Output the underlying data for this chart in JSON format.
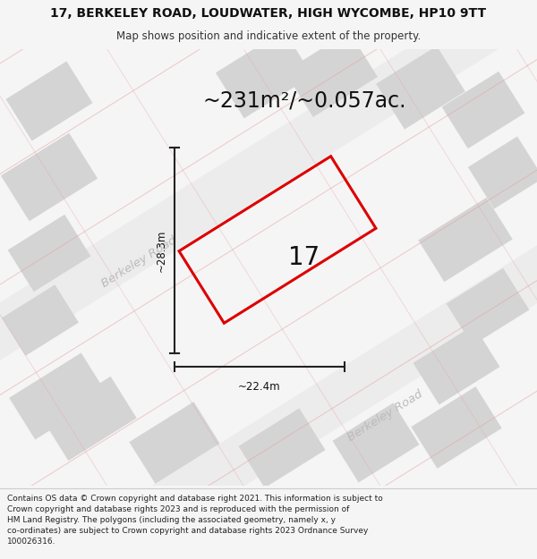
{
  "title_line1": "17, BERKELEY ROAD, LOUDWATER, HIGH WYCOMBE, HP10 9TT",
  "title_line2": "Map shows position and indicative extent of the property.",
  "area_text": "~231m²/~0.057ac.",
  "plot_label": "17",
  "dim_width": "~22.4m",
  "dim_height": "~28.3m",
  "road_label": "Berkeley Road",
  "footer_text_line1": "Contains OS data © Crown copyright and database right 2021. This information is subject to",
  "footer_text_line2": "Crown copyright and database rights 2023 and is reproduced with the permission of",
  "footer_text_line3": "HM Land Registry. The polygons (including the associated geometry, namely x, y",
  "footer_text_line4": "co-ordinates) are subject to Crown copyright and database rights 2023 Ordnance Survey",
  "footer_text_line5": "100026316.",
  "bg_color": "#f5f5f5",
  "map_bg": "#ffffff",
  "building_fill": "#d4d4d4",
  "road_strip_color": "#ececec",
  "road_line_color": "#e8a0a0",
  "plot_color": "#dd0000",
  "dim_color": "#222222",
  "text_color": "#111111",
  "road_text_color": "#bbbbbb",
  "title_fontsize": 10,
  "subtitle_fontsize": 8.5,
  "area_fontsize": 17,
  "dim_fontsize": 8.5,
  "road_fontsize": 9.5,
  "plot_label_fontsize": 20,
  "footer_fontsize": 6.5
}
